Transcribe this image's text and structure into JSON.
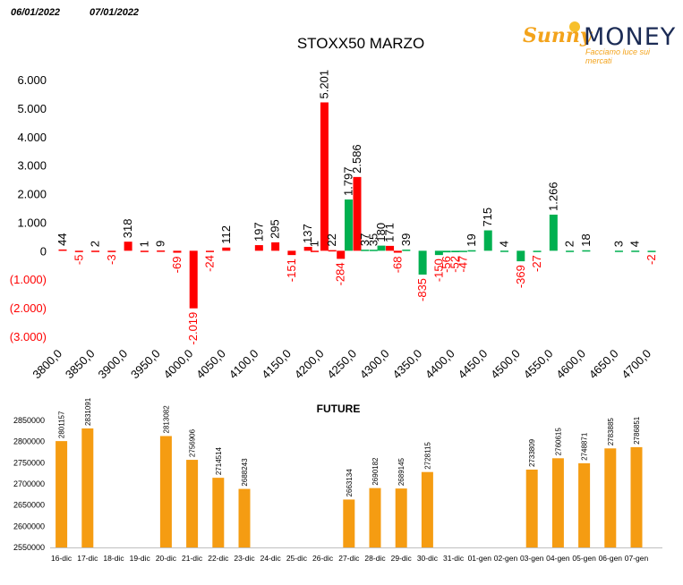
{
  "header": {
    "date_from": "06/01/2022",
    "date_to": "07/01/2022"
  },
  "logo": {
    "brand_left": "Sunny",
    "brand_right": "MONEY",
    "tagline": "Facciamo luce sui mercati",
    "icon": "sun-icon"
  },
  "colors": {
    "put": "#ff0000",
    "call": "#00b050",
    "future": "#f59c12"
  },
  "chart_data": [
    {
      "type": "bar",
      "title": "STOXX50 MARZO",
      "ylim": [
        -3000,
        6000
      ],
      "y_ticks": [
        -3000,
        -2000,
        -1000,
        0,
        1000,
        2000,
        3000,
        4000,
        5000,
        6000
      ],
      "y_tick_labels": [
        "(3.000)",
        "(2.000)",
        "(1.000)",
        "0",
        "1.000",
        "2.000",
        "3.000",
        "4.000",
        "5.000",
        "6.000"
      ],
      "x_tick_labels": [
        "3800,0",
        "3850,0",
        "3900,0",
        "3950,0",
        "4000,0",
        "4050,0",
        "4100,0",
        "4150,0",
        "4200,0",
        "4250,0",
        "4300,0",
        "4350,0",
        "4400,0",
        "4450,0",
        "4500,0",
        "4550,0",
        "4600,0",
        "4650,0",
        "4700,0"
      ],
      "grid": false,
      "bars": [
        {
          "strike": 3800,
          "series": "red",
          "value": 44,
          "label": "44"
        },
        {
          "strike": 3825,
          "series": "red",
          "value": -5,
          "label": "-5"
        },
        {
          "strike": 3850,
          "series": "red",
          "value": 2,
          "label": "2"
        },
        {
          "strike": 3875,
          "series": "red",
          "value": -3,
          "label": "-3"
        },
        {
          "strike": 3900,
          "series": "red",
          "value": 318,
          "label": "318"
        },
        {
          "strike": 3925,
          "series": "red",
          "value": 1,
          "label": "1"
        },
        {
          "strike": 3950,
          "series": "red",
          "value": 9,
          "label": "9"
        },
        {
          "strike": 3975,
          "series": "red",
          "value": -69,
          "label": "-69"
        },
        {
          "strike": 4000,
          "series": "red",
          "value": -2019,
          "label": "-2.019"
        },
        {
          "strike": 4025,
          "series": "red",
          "value": -24,
          "label": "-24"
        },
        {
          "strike": 4050,
          "series": "red",
          "value": 112,
          "label": "112"
        },
        {
          "strike": 4100,
          "series": "red",
          "value": 197,
          "label": "197"
        },
        {
          "strike": 4125,
          "series": "red",
          "value": 295,
          "label": "295"
        },
        {
          "strike": 4150,
          "series": "red",
          "value": -151,
          "label": "-151"
        },
        {
          "strike": 4175,
          "series": "red",
          "value": 137,
          "label": "137"
        },
        {
          "strike": 4185,
          "series": "red",
          "value": 1,
          "label": "1"
        },
        {
          "strike": 4200,
          "series": "red",
          "value": 5201,
          "label": "5.201"
        },
        {
          "strike": 4212,
          "series": "red",
          "value": 22,
          "label": "22"
        },
        {
          "strike": 4225,
          "series": "red",
          "value": -284,
          "label": "-284"
        },
        {
          "strike": 4237,
          "series": "green",
          "value": 1797,
          "label": "1.797"
        },
        {
          "strike": 4250,
          "series": "red",
          "value": 2586,
          "label": "2.586"
        },
        {
          "strike": 4262,
          "series": "green",
          "value": 37,
          "label": "37"
        },
        {
          "strike": 4275,
          "series": "green",
          "value": 35,
          "label": "35"
        },
        {
          "strike": 4287,
          "series": "green",
          "value": 180,
          "label": "180"
        },
        {
          "strike": 4300,
          "series": "red",
          "value": 171,
          "label": "171"
        },
        {
          "strike": 4312,
          "series": "red",
          "value": -68,
          "label": "-68"
        },
        {
          "strike": 4325,
          "series": "green",
          "value": 39,
          "label": "39"
        },
        {
          "strike": 4350,
          "series": "green",
          "value": -835,
          "label": "-835"
        },
        {
          "strike": 4375,
          "series": "green",
          "value": -150,
          "label": "-150"
        },
        {
          "strike": 4387,
          "series": "green",
          "value": -56,
          "label": "-56"
        },
        {
          "strike": 4400,
          "series": "green",
          "value": -52,
          "label": "-52"
        },
        {
          "strike": 4412,
          "series": "green",
          "value": -47,
          "label": "-47"
        },
        {
          "strike": 4425,
          "series": "green",
          "value": 19,
          "label": "19"
        },
        {
          "strike": 4450,
          "series": "green",
          "value": 715,
          "label": "715"
        },
        {
          "strike": 4475,
          "series": "green",
          "value": 4,
          "label": "4"
        },
        {
          "strike": 4500,
          "series": "green",
          "value": -369,
          "label": "-369"
        },
        {
          "strike": 4525,
          "series": "green",
          "value": -27,
          "label": "-27"
        },
        {
          "strike": 4550,
          "series": "green",
          "value": 1266,
          "label": "1.266"
        },
        {
          "strike": 4575,
          "series": "green",
          "value": 2,
          "label": "2"
        },
        {
          "strike": 4600,
          "series": "green",
          "value": 18,
          "label": "18"
        },
        {
          "strike": 4650,
          "series": "green",
          "value": 3,
          "label": "3"
        },
        {
          "strike": 4675,
          "series": "green",
          "value": 4,
          "label": "4"
        },
        {
          "strike": 4700,
          "series": "green",
          "value": -2,
          "label": "-2"
        }
      ]
    },
    {
      "type": "bar",
      "title": "FUTURE",
      "ylim": [
        2550000,
        2850000
      ],
      "y_ticks": [
        2550000,
        2600000,
        2650000,
        2700000,
        2750000,
        2800000,
        2850000
      ],
      "y_tick_labels": [
        "2550000",
        "2600000",
        "2650000",
        "2700000",
        "2750000",
        "2800000",
        "2850000"
      ],
      "categories": [
        "16-dic",
        "17-dic",
        "18-dic",
        "19-dic",
        "20-dic",
        "21-dic",
        "22-dic",
        "23-dic",
        "24-dic",
        "25-dic",
        "26-dic",
        "27-dic",
        "28-dic",
        "29-dic",
        "30-dic",
        "31-dic",
        "01-gen",
        "02-gen",
        "03-gen",
        "04-gen",
        "05-gen",
        "06-gen",
        "07-gen"
      ],
      "values": [
        2801157,
        2831091,
        null,
        null,
        2813082,
        2756906,
        2714514,
        2688243,
        null,
        null,
        null,
        2663134,
        2690182,
        2689145,
        2728115,
        null,
        null,
        null,
        2733809,
        2760615,
        2748871,
        2783885,
        2786851
      ],
      "value_labels": [
        "2801157",
        "2831091",
        "",
        "",
        "2813082",
        "2756906",
        "2714514",
        "2688243",
        "",
        "",
        "",
        "2663134",
        "2690182",
        "2689145",
        "2728115",
        "",
        "",
        "",
        "2733809",
        "2760615",
        "2748871",
        "2783885",
        "2786851"
      ],
      "grid": false
    }
  ]
}
